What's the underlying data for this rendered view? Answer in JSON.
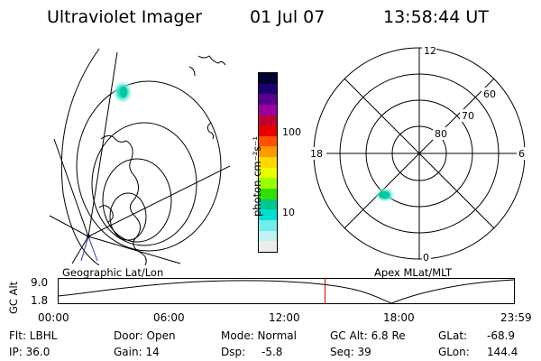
{
  "header": {
    "instrument": "Ultraviolet Imager",
    "date": "01 Jul 07",
    "time": "13:58:44 UT"
  },
  "colorbar": {
    "label": "photon cm⁻²s⁻¹",
    "ticks": [
      "100",
      "10"
    ],
    "colors": [
      "#000033",
      "#1a0070",
      "#5a0090",
      "#9a00a0",
      "#c00030",
      "#e80000",
      "#ff5000",
      "#ff9a00",
      "#ffd800",
      "#e8ff00",
      "#9aff00",
      "#30e000",
      "#00c890",
      "#00e0d0",
      "#70ecec",
      "#c0f2f2",
      "#ececec"
    ]
  },
  "left_panel": {
    "label": "Geographic Lat/Lon"
  },
  "right_panel": {
    "label": "Apex MLat/MLT",
    "mlt_labels": [
      "12",
      "18",
      "6",
      "0"
    ],
    "lat_labels": [
      "60",
      "70",
      "80"
    ]
  },
  "altitude_plot": {
    "ylabel": "GC Alt",
    "yticks": [
      "9.0",
      "1.8"
    ],
    "xticks": [
      "00:00",
      "06:00",
      "12:00",
      "18:00",
      "23:59"
    ],
    "current_time_fraction": 0.585,
    "marker_color": "#cc0000"
  },
  "info": {
    "filter": "Flt: LBHL",
    "ip": "IP: 36.0",
    "door": "Door: Open",
    "gain": "Gain: 14",
    "mode": "Mode: Normal",
    "dsp_label": "Dsp:",
    "dsp_value": "-5.8",
    "gc_alt": "GC Alt: 6.8 Re",
    "seq": "Seq: 39",
    "glat_label": "GLat:",
    "glat_value": "-68.9",
    "glon_label": "GLon:",
    "glon_value": "144.4"
  }
}
